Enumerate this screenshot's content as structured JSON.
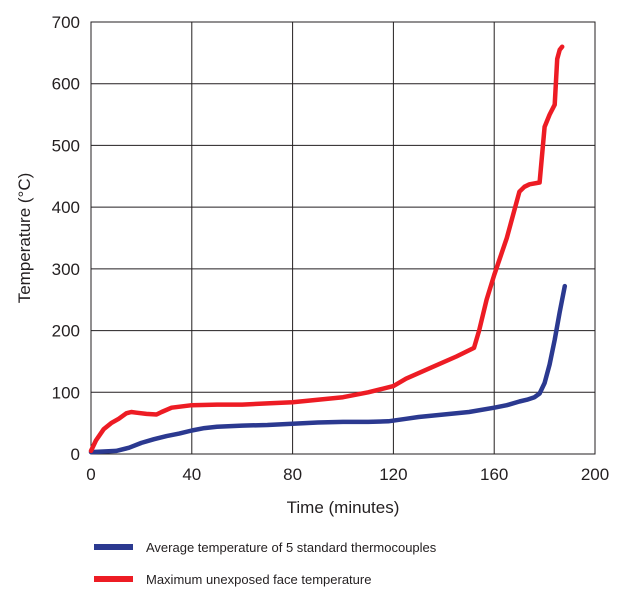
{
  "chart_data": {
    "type": "line",
    "title": "",
    "xlabel": "Time (minutes)",
    "ylabel": "Temperature (°C)",
    "xlim": [
      0,
      200
    ],
    "ylim": [
      0,
      700
    ],
    "xticks": [
      0,
      40,
      80,
      120,
      160,
      200
    ],
    "yticks": [
      0,
      100,
      200,
      300,
      400,
      500,
      600,
      700
    ],
    "grid": true,
    "legend_position": "bottom",
    "series": [
      {
        "name": "Average temperature of 5 standard thermocouples",
        "color": "#2b3990",
        "x": [
          0,
          5,
          10,
          15,
          20,
          25,
          30,
          35,
          40,
          45,
          50,
          60,
          70,
          80,
          90,
          100,
          110,
          118,
          125,
          130,
          140,
          150,
          160,
          165,
          170,
          173,
          176,
          178,
          180,
          182,
          184,
          186,
          188
        ],
        "y": [
          3,
          4,
          5,
          10,
          18,
          24,
          29,
          33,
          38,
          42,
          44,
          46,
          47,
          49,
          51,
          52,
          52,
          53,
          57,
          60,
          64,
          68,
          75,
          79,
          85,
          88,
          92,
          98,
          115,
          145,
          185,
          230,
          272
        ]
      },
      {
        "name": "Maximum unexposed face temperature",
        "color": "#ed1c24",
        "x": [
          0,
          2,
          5,
          8,
          11,
          14,
          16,
          18,
          22,
          26,
          28,
          32,
          40,
          50,
          60,
          70,
          80,
          90,
          100,
          110,
          115,
          120,
          125,
          135,
          145,
          152,
          154,
          157,
          160,
          165,
          170,
          172,
          174,
          178,
          180,
          182,
          184,
          185,
          186,
          187
        ],
        "y": [
          5,
          22,
          40,
          50,
          57,
          66,
          68,
          67,
          65,
          64,
          68,
          75,
          79,
          80,
          80,
          82,
          84,
          88,
          92,
          100,
          105,
          110,
          122,
          140,
          158,
          172,
          200,
          250,
          290,
          350,
          425,
          433,
          437,
          440,
          530,
          550,
          566,
          640,
          655,
          660
        ]
      }
    ]
  }
}
